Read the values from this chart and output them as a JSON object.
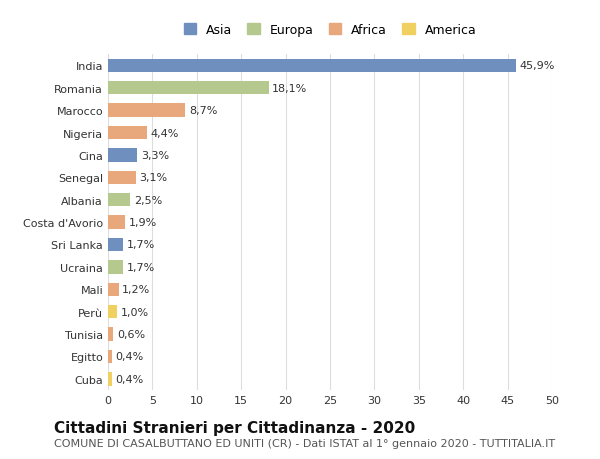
{
  "countries": [
    "India",
    "Romania",
    "Marocco",
    "Nigeria",
    "Cina",
    "Senegal",
    "Albania",
    "Costa d'Avorio",
    "Sri Lanka",
    "Ucraina",
    "Mali",
    "Perù",
    "Tunisia",
    "Egitto",
    "Cuba"
  ],
  "values": [
    45.9,
    18.1,
    8.7,
    4.4,
    3.3,
    3.1,
    2.5,
    1.9,
    1.7,
    1.7,
    1.2,
    1.0,
    0.6,
    0.4,
    0.4
  ],
  "labels": [
    "45,9%",
    "18,1%",
    "8,7%",
    "4,4%",
    "3,3%",
    "3,1%",
    "2,5%",
    "1,9%",
    "1,7%",
    "1,7%",
    "1,2%",
    "1,0%",
    "0,6%",
    "0,4%",
    "0,4%"
  ],
  "continents": [
    "Asia",
    "Europa",
    "Africa",
    "Africa",
    "Asia",
    "Africa",
    "Europa",
    "Africa",
    "Asia",
    "Europa",
    "Africa",
    "America",
    "Africa",
    "Africa",
    "America"
  ],
  "colors": {
    "Asia": "#6f8fbf",
    "Europa": "#b5c98e",
    "Africa": "#e8a87c",
    "America": "#f0d060"
  },
  "legend_order": [
    "Asia",
    "Europa",
    "Africa",
    "America"
  ],
  "title": "Cittadini Stranieri per Cittadinanza - 2020",
  "subtitle": "COMUNE DI CASALBUTTANO ED UNITI (CR) - Dati ISTAT al 1° gennaio 2020 - TUTTITALIA.IT",
  "xlim": [
    0,
    50
  ],
  "xticks": [
    0,
    5,
    10,
    15,
    20,
    25,
    30,
    35,
    40,
    45,
    50
  ],
  "background_color": "#ffffff",
  "grid_color": "#dddddd",
  "bar_height": 0.6,
  "title_fontsize": 11,
  "subtitle_fontsize": 8,
  "label_fontsize": 8,
  "tick_fontsize": 8,
  "legend_fontsize": 9
}
